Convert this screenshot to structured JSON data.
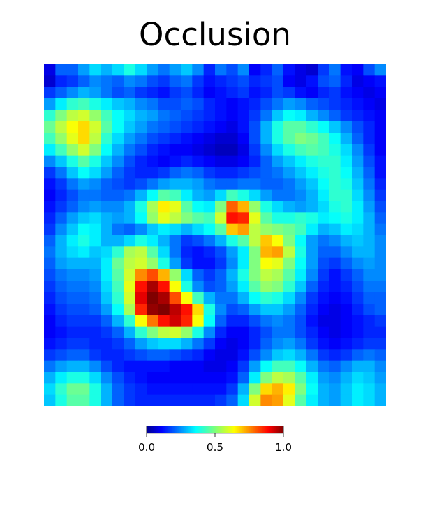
{
  "chart_data": {
    "type": "heatmap",
    "title": "Occlusion",
    "colormap": "jet",
    "value_range": [
      0,
      1
    ],
    "grid_size": [
      30,
      30
    ],
    "colorbar": {
      "ticks": [
        0.0,
        0.5,
        1.0
      ],
      "tick_labels": [
        "0.0",
        "0.5",
        "1.0"
      ]
    },
    "z": [
      [
        0.1,
        0.22,
        0.22,
        0.28,
        0.34,
        0.3,
        0.34,
        0.4,
        0.34,
        0.28,
        0.24,
        0.28,
        0.32,
        0.26,
        0.16,
        0.24,
        0.2,
        0.26,
        0.12,
        0.16,
        0.22,
        0.14,
        0.1,
        0.08,
        0.18,
        0.24,
        0.14,
        0.12,
        0.2,
        0.26
      ],
      [
        0.08,
        0.16,
        0.18,
        0.22,
        0.26,
        0.24,
        0.22,
        0.26,
        0.24,
        0.2,
        0.18,
        0.22,
        0.24,
        0.18,
        0.14,
        0.16,
        0.18,
        0.2,
        0.16,
        0.18,
        0.2,
        0.12,
        0.1,
        0.14,
        0.2,
        0.22,
        0.16,
        0.1,
        0.12,
        0.14
      ],
      [
        0.18,
        0.22,
        0.26,
        0.3,
        0.28,
        0.24,
        0.2,
        0.22,
        0.18,
        0.16,
        0.14,
        0.18,
        0.2,
        0.16,
        0.12,
        0.14,
        0.16,
        0.18,
        0.14,
        0.16,
        0.2,
        0.18,
        0.14,
        0.12,
        0.16,
        0.18,
        0.14,
        0.12,
        0.1,
        0.12
      ],
      [
        0.28,
        0.36,
        0.42,
        0.44,
        0.4,
        0.36,
        0.32,
        0.3,
        0.26,
        0.24,
        0.2,
        0.2,
        0.22,
        0.2,
        0.16,
        0.14,
        0.12,
        0.14,
        0.16,
        0.2,
        0.24,
        0.28,
        0.26,
        0.22,
        0.2,
        0.18,
        0.16,
        0.14,
        0.12,
        0.1
      ],
      [
        0.42,
        0.5,
        0.56,
        0.58,
        0.52,
        0.44,
        0.38,
        0.34,
        0.3,
        0.28,
        0.24,
        0.22,
        0.2,
        0.18,
        0.16,
        0.14,
        0.12,
        0.14,
        0.18,
        0.24,
        0.32,
        0.38,
        0.36,
        0.3,
        0.26,
        0.22,
        0.18,
        0.16,
        0.14,
        0.12
      ],
      [
        0.48,
        0.56,
        0.62,
        0.66,
        0.58,
        0.46,
        0.38,
        0.32,
        0.28,
        0.24,
        0.22,
        0.2,
        0.18,
        0.16,
        0.14,
        0.12,
        0.1,
        0.14,
        0.2,
        0.3,
        0.4,
        0.46,
        0.46,
        0.42,
        0.38,
        0.32,
        0.26,
        0.2,
        0.16,
        0.12
      ],
      [
        0.44,
        0.52,
        0.6,
        0.66,
        0.56,
        0.42,
        0.34,
        0.28,
        0.24,
        0.2,
        0.18,
        0.16,
        0.14,
        0.12,
        0.1,
        0.08,
        0.08,
        0.12,
        0.2,
        0.3,
        0.4,
        0.46,
        0.5,
        0.48,
        0.44,
        0.38,
        0.3,
        0.22,
        0.16,
        0.12
      ],
      [
        0.36,
        0.44,
        0.52,
        0.58,
        0.5,
        0.38,
        0.3,
        0.24,
        0.2,
        0.16,
        0.14,
        0.12,
        0.12,
        0.1,
        0.08,
        0.06,
        0.06,
        0.1,
        0.18,
        0.26,
        0.34,
        0.4,
        0.44,
        0.46,
        0.44,
        0.4,
        0.34,
        0.26,
        0.18,
        0.12
      ],
      [
        0.26,
        0.32,
        0.4,
        0.46,
        0.4,
        0.32,
        0.26,
        0.2,
        0.16,
        0.14,
        0.12,
        0.14,
        0.16,
        0.14,
        0.12,
        0.1,
        0.1,
        0.12,
        0.16,
        0.22,
        0.28,
        0.32,
        0.36,
        0.4,
        0.42,
        0.42,
        0.36,
        0.28,
        0.2,
        0.14
      ],
      [
        0.18,
        0.24,
        0.32,
        0.38,
        0.34,
        0.28,
        0.22,
        0.18,
        0.16,
        0.16,
        0.18,
        0.22,
        0.24,
        0.22,
        0.18,
        0.16,
        0.16,
        0.18,
        0.2,
        0.22,
        0.24,
        0.28,
        0.32,
        0.36,
        0.4,
        0.42,
        0.38,
        0.3,
        0.22,
        0.14
      ],
      [
        0.14,
        0.18,
        0.24,
        0.28,
        0.26,
        0.22,
        0.2,
        0.18,
        0.2,
        0.24,
        0.28,
        0.3,
        0.3,
        0.28,
        0.24,
        0.22,
        0.22,
        0.24,
        0.24,
        0.22,
        0.22,
        0.24,
        0.28,
        0.32,
        0.38,
        0.42,
        0.4,
        0.32,
        0.24,
        0.16
      ],
      [
        0.12,
        0.16,
        0.2,
        0.24,
        0.24,
        0.22,
        0.22,
        0.24,
        0.3,
        0.38,
        0.46,
        0.44,
        0.36,
        0.3,
        0.28,
        0.34,
        0.44,
        0.4,
        0.34,
        0.28,
        0.24,
        0.24,
        0.26,
        0.3,
        0.36,
        0.42,
        0.42,
        0.34,
        0.26,
        0.18
      ],
      [
        0.14,
        0.18,
        0.22,
        0.26,
        0.28,
        0.26,
        0.26,
        0.3,
        0.4,
        0.54,
        0.64,
        0.6,
        0.46,
        0.38,
        0.36,
        0.5,
        0.78,
        0.7,
        0.52,
        0.4,
        0.34,
        0.3,
        0.28,
        0.3,
        0.34,
        0.4,
        0.42,
        0.36,
        0.28,
        0.2
      ],
      [
        0.16,
        0.22,
        0.28,
        0.32,
        0.34,
        0.3,
        0.28,
        0.3,
        0.38,
        0.52,
        0.6,
        0.56,
        0.5,
        0.46,
        0.44,
        0.58,
        0.86,
        0.84,
        0.6,
        0.46,
        0.4,
        0.4,
        0.42,
        0.4,
        0.36,
        0.38,
        0.4,
        0.36,
        0.3,
        0.22
      ],
      [
        0.18,
        0.26,
        0.32,
        0.38,
        0.36,
        0.3,
        0.24,
        0.22,
        0.26,
        0.32,
        0.36,
        0.34,
        0.3,
        0.34,
        0.38,
        0.46,
        0.68,
        0.72,
        0.56,
        0.52,
        0.5,
        0.48,
        0.44,
        0.36,
        0.3,
        0.32,
        0.36,
        0.34,
        0.3,
        0.24
      ],
      [
        0.22,
        0.3,
        0.36,
        0.4,
        0.36,
        0.3,
        0.3,
        0.34,
        0.4,
        0.36,
        0.3,
        0.24,
        0.18,
        0.2,
        0.24,
        0.3,
        0.4,
        0.46,
        0.56,
        0.68,
        0.62,
        0.5,
        0.38,
        0.28,
        0.24,
        0.26,
        0.3,
        0.32,
        0.3,
        0.26
      ],
      [
        0.24,
        0.3,
        0.34,
        0.36,
        0.32,
        0.34,
        0.42,
        0.54,
        0.56,
        0.46,
        0.34,
        0.24,
        0.16,
        0.14,
        0.16,
        0.2,
        0.28,
        0.36,
        0.5,
        0.7,
        0.72,
        0.56,
        0.4,
        0.28,
        0.22,
        0.22,
        0.26,
        0.3,
        0.3,
        0.26
      ],
      [
        0.22,
        0.28,
        0.3,
        0.3,
        0.3,
        0.36,
        0.48,
        0.56,
        0.58,
        0.52,
        0.4,
        0.28,
        0.18,
        0.14,
        0.14,
        0.18,
        0.26,
        0.36,
        0.5,
        0.62,
        0.6,
        0.5,
        0.38,
        0.28,
        0.2,
        0.18,
        0.22,
        0.26,
        0.28,
        0.26
      ],
      [
        0.2,
        0.24,
        0.26,
        0.26,
        0.28,
        0.36,
        0.46,
        0.58,
        0.74,
        0.8,
        0.7,
        0.52,
        0.34,
        0.22,
        0.18,
        0.22,
        0.3,
        0.4,
        0.5,
        0.56,
        0.54,
        0.46,
        0.36,
        0.26,
        0.18,
        0.14,
        0.18,
        0.22,
        0.26,
        0.26
      ],
      [
        0.18,
        0.22,
        0.24,
        0.24,
        0.26,
        0.34,
        0.44,
        0.6,
        0.86,
        0.96,
        0.86,
        0.62,
        0.4,
        0.26,
        0.2,
        0.22,
        0.28,
        0.36,
        0.46,
        0.52,
        0.5,
        0.42,
        0.32,
        0.22,
        0.16,
        0.14,
        0.16,
        0.2,
        0.24,
        0.24
      ],
      [
        0.16,
        0.2,
        0.22,
        0.22,
        0.24,
        0.32,
        0.42,
        0.58,
        0.9,
        1.0,
        0.96,
        0.8,
        0.62,
        0.44,
        0.3,
        0.24,
        0.24,
        0.3,
        0.38,
        0.42,
        0.4,
        0.34,
        0.26,
        0.18,
        0.14,
        0.12,
        0.14,
        0.18,
        0.22,
        0.22
      ],
      [
        0.14,
        0.18,
        0.2,
        0.2,
        0.22,
        0.28,
        0.38,
        0.54,
        0.84,
        0.98,
        1.0,
        0.94,
        0.86,
        0.66,
        0.4,
        0.26,
        0.2,
        0.22,
        0.28,
        0.32,
        0.32,
        0.28,
        0.22,
        0.16,
        0.12,
        0.1,
        0.12,
        0.16,
        0.2,
        0.22
      ],
      [
        0.12,
        0.16,
        0.18,
        0.18,
        0.18,
        0.22,
        0.3,
        0.42,
        0.62,
        0.76,
        0.86,
        0.92,
        0.84,
        0.62,
        0.38,
        0.22,
        0.16,
        0.16,
        0.2,
        0.24,
        0.26,
        0.24,
        0.2,
        0.14,
        0.1,
        0.1,
        0.12,
        0.14,
        0.16,
        0.18
      ],
      [
        0.12,
        0.14,
        0.16,
        0.16,
        0.16,
        0.18,
        0.22,
        0.3,
        0.42,
        0.5,
        0.56,
        0.58,
        0.52,
        0.4,
        0.26,
        0.16,
        0.12,
        0.12,
        0.16,
        0.2,
        0.24,
        0.24,
        0.2,
        0.16,
        0.12,
        0.1,
        0.12,
        0.14,
        0.16,
        0.16
      ],
      [
        0.14,
        0.16,
        0.18,
        0.18,
        0.16,
        0.16,
        0.18,
        0.22,
        0.28,
        0.32,
        0.34,
        0.34,
        0.3,
        0.24,
        0.18,
        0.12,
        0.1,
        0.12,
        0.16,
        0.22,
        0.26,
        0.28,
        0.24,
        0.18,
        0.14,
        0.12,
        0.14,
        0.16,
        0.18,
        0.18
      ],
      [
        0.18,
        0.2,
        0.22,
        0.22,
        0.18,
        0.16,
        0.16,
        0.18,
        0.2,
        0.22,
        0.22,
        0.2,
        0.18,
        0.16,
        0.12,
        0.1,
        0.1,
        0.14,
        0.2,
        0.26,
        0.32,
        0.34,
        0.3,
        0.24,
        0.18,
        0.16,
        0.18,
        0.22,
        0.24,
        0.22
      ],
      [
        0.24,
        0.28,
        0.3,
        0.3,
        0.26,
        0.2,
        0.16,
        0.14,
        0.14,
        0.14,
        0.14,
        0.12,
        0.12,
        0.12,
        0.1,
        0.1,
        0.12,
        0.18,
        0.28,
        0.38,
        0.44,
        0.44,
        0.38,
        0.3,
        0.24,
        0.22,
        0.26,
        0.3,
        0.3,
        0.26
      ],
      [
        0.3,
        0.36,
        0.4,
        0.4,
        0.34,
        0.26,
        0.2,
        0.16,
        0.14,
        0.12,
        0.12,
        0.12,
        0.12,
        0.12,
        0.12,
        0.12,
        0.14,
        0.22,
        0.36,
        0.5,
        0.56,
        0.54,
        0.46,
        0.36,
        0.28,
        0.26,
        0.3,
        0.34,
        0.32,
        0.28
      ],
      [
        0.34,
        0.42,
        0.48,
        0.48,
        0.4,
        0.3,
        0.22,
        0.18,
        0.16,
        0.14,
        0.14,
        0.14,
        0.14,
        0.14,
        0.14,
        0.14,
        0.18,
        0.3,
        0.5,
        0.66,
        0.7,
        0.64,
        0.5,
        0.38,
        0.3,
        0.28,
        0.32,
        0.36,
        0.34,
        0.3
      ],
      [
        0.32,
        0.4,
        0.46,
        0.46,
        0.4,
        0.3,
        0.22,
        0.18,
        0.16,
        0.16,
        0.16,
        0.16,
        0.16,
        0.16,
        0.16,
        0.18,
        0.22,
        0.34,
        0.58,
        0.74,
        0.72,
        0.6,
        0.46,
        0.36,
        0.3,
        0.28,
        0.32,
        0.36,
        0.34,
        0.3
      ]
    ]
  }
}
